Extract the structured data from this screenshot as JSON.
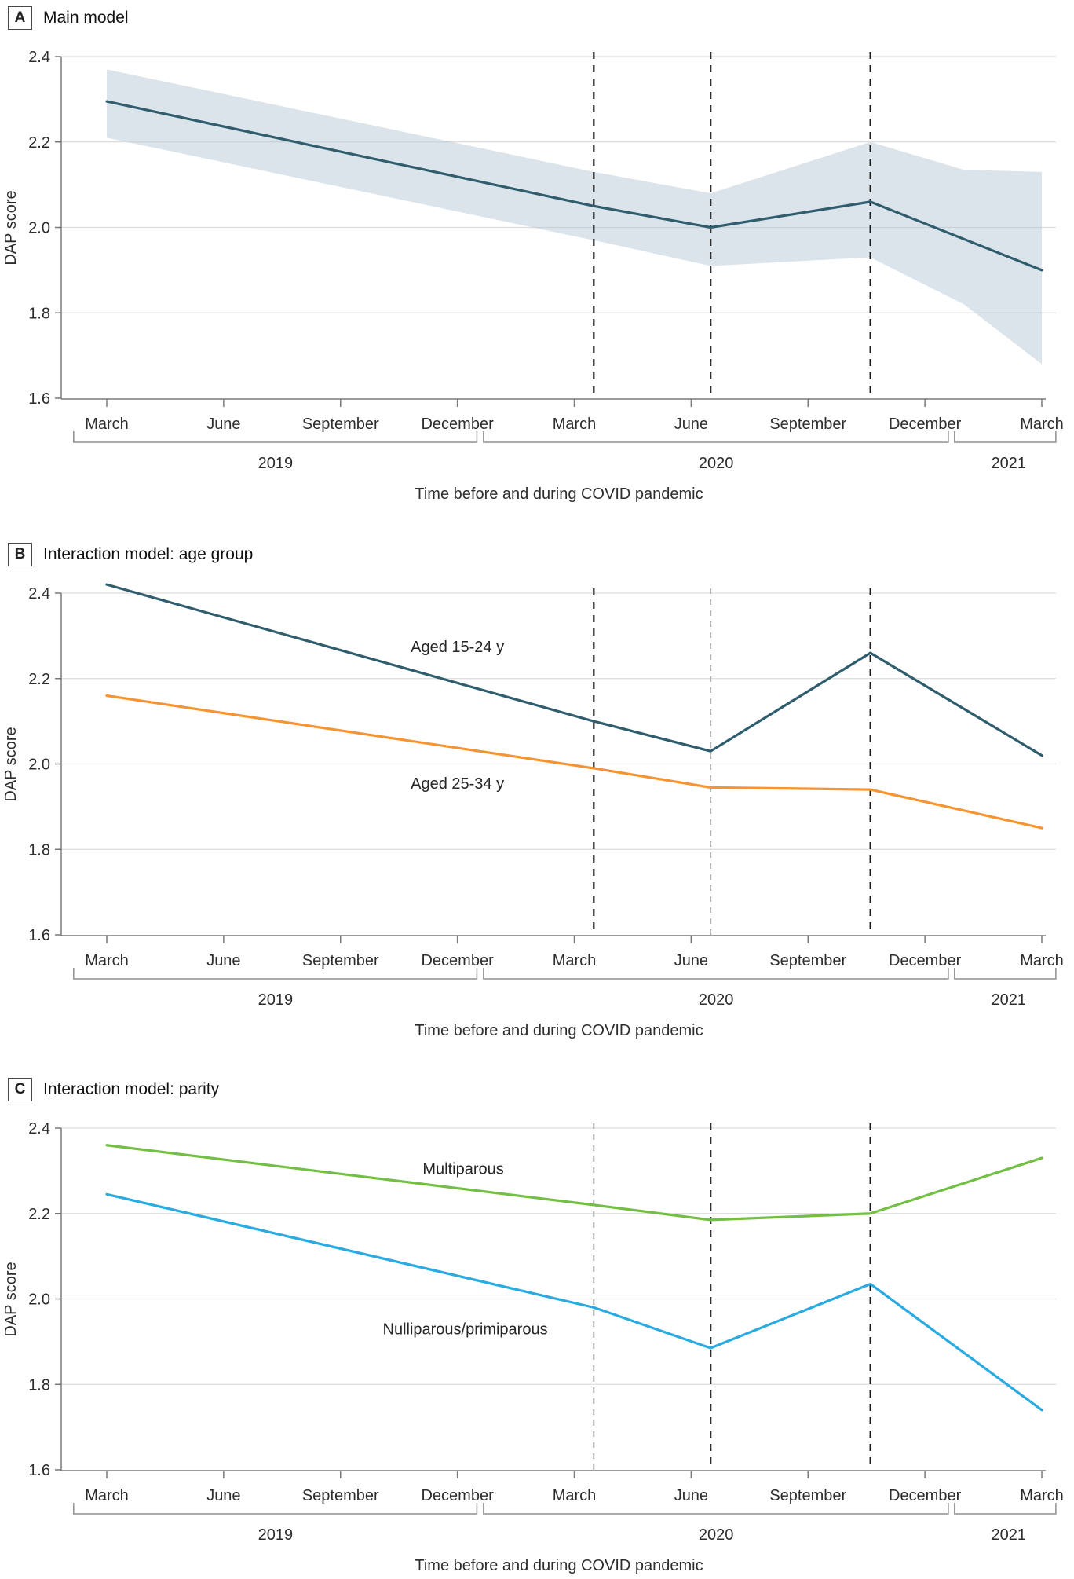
{
  "figure": {
    "ylabel": "DAP score",
    "xlabel": "Time before and during COVID pandemic",
    "ytick_labels": [
      "2.4",
      "2.2",
      "2.0",
      "1.8",
      "1.6"
    ],
    "month_tick_labels": [
      "March",
      "June",
      "September",
      "December",
      "March",
      "June",
      "September",
      "December",
      "March"
    ],
    "year_labels": [
      "2019",
      "2020",
      "2021"
    ]
  },
  "chart_data": {
    "type": "line",
    "x_unit": "months since March 2019",
    "x_ticks_months": [
      0,
      3,
      6,
      9,
      12,
      15,
      18,
      21,
      24
    ],
    "x_tick_labels": [
      "March",
      "June",
      "September",
      "December",
      "March",
      "June",
      "September",
      "December",
      "March"
    ],
    "ylim": [
      1.6,
      2.4
    ],
    "yticks": [
      2.4,
      2.2,
      2.0,
      1.8,
      1.6
    ],
    "ytick_labels": [
      "2.4",
      "2.2",
      "2.0",
      "1.8",
      "1.6"
    ],
    "ylabel": "DAP score",
    "xlabel": "Time before and during COVID pandemic",
    "grid": "horizontal",
    "dashed_vlines_months": [
      12.5,
      15.5,
      19.6
    ],
    "years": [
      {
        "label": "2019",
        "from_m": -0.85,
        "to_m": 9.5,
        "label_m": 4.33
      },
      {
        "label": "2020",
        "from_m": 9.67,
        "to_m": 21.6,
        "label_m": 15.64
      },
      {
        "label": "2021",
        "from_m": 21.76,
        "to_m": 24.36,
        "label_m": 23.15
      }
    ],
    "panels": [
      {
        "letter": "A",
        "title": "Main model",
        "dash_colors": [
          "black",
          "black",
          "black"
        ],
        "band": {
          "series": "Main model 95% CI",
          "points": [
            [
              0,
              2.21,
              2.37
            ],
            [
              12.5,
              1.97,
              2.13
            ],
            [
              15.5,
              1.91,
              2.08
            ],
            [
              19.6,
              1.93,
              2.2
            ],
            [
              22,
              1.82,
              2.135
            ],
            [
              24,
              1.68,
              2.13
            ]
          ]
        },
        "series": [
          {
            "name": "Main model",
            "color": "#2f5d6d",
            "points": [
              [
                0,
                2.295
              ],
              [
                12.5,
                2.05
              ],
              [
                15.5,
                2.0
              ],
              [
                19.6,
                2.06
              ],
              [
                24,
                1.9
              ]
            ]
          }
        ]
      },
      {
        "letter": "B",
        "title": "Interaction model: age group",
        "dash_colors": [
          "black",
          "gray",
          "black"
        ],
        "series": [
          {
            "name": "Aged 15-24 y",
            "color": "#2f5d6d",
            "points": [
              [
                0,
                2.42
              ],
              [
                12.5,
                2.1
              ],
              [
                15.5,
                2.03
              ],
              [
                19.6,
                2.26
              ],
              [
                24,
                2.02
              ]
            ],
            "label": {
              "m": 9.0,
              "v": 2.275
            }
          },
          {
            "name": "Aged 25-34 y",
            "color": "#f79432",
            "points": [
              [
                0,
                2.16
              ],
              [
                12.5,
                1.99
              ],
              [
                15.5,
                1.945
              ],
              [
                19.6,
                1.94
              ],
              [
                24,
                1.85
              ]
            ],
            "label": {
              "m": 9.0,
              "v": 1.955
            }
          }
        ]
      },
      {
        "letter": "C",
        "title": "Interaction model: parity",
        "dash_colors": [
          "gray",
          "black",
          "black"
        ],
        "series": [
          {
            "name": "Multiparous",
            "color": "#72bf44",
            "points": [
              [
                0,
                2.36
              ],
              [
                12.5,
                2.22
              ],
              [
                15.5,
                2.185
              ],
              [
                19.6,
                2.2
              ],
              [
                24,
                2.33
              ]
            ],
            "label": {
              "m": 9.15,
              "v": 2.305
            }
          },
          {
            "name": "Nulliparous/primiparous",
            "color": "#29abe2",
            "points": [
              [
                0,
                2.245
              ],
              [
                12.5,
                1.98
              ],
              [
                15.5,
                1.885
              ],
              [
                19.6,
                2.035
              ],
              [
                24,
                1.74
              ]
            ],
            "label": {
              "m": 9.2,
              "v": 1.93
            }
          }
        ]
      }
    ],
    "colors": {
      "grid": "#dcdcdc",
      "axis": "#7a7a7a",
      "text": "#2d2d2d",
      "dash_black": "#1c1c1c",
      "dash_gray": "#9b9b9b",
      "band_fill": "rgba(176,195,208,0.45)"
    }
  }
}
